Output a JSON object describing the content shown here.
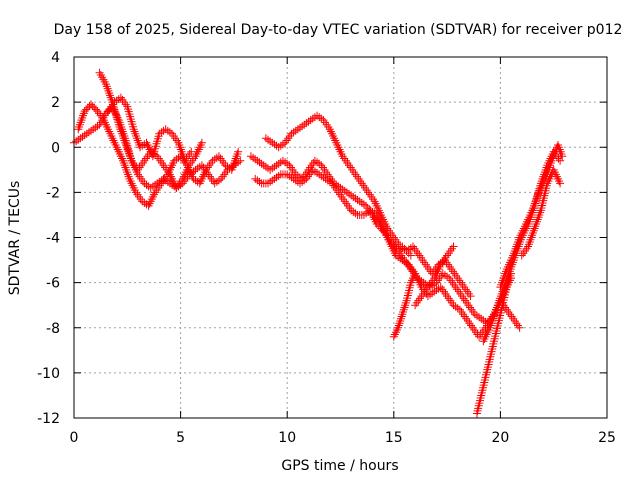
{
  "chart_data": {
    "type": "scatter",
    "title": "Day 158 of 2025, Sidereal Day-to-day VTEC variation (SDTVAR) for receiver p012",
    "xlabel": "GPS time / hours",
    "ylabel": "SDTVAR / TECUs",
    "xlim": [
      0,
      25
    ],
    "ylim": [
      -12,
      4
    ],
    "xticks": [
      0,
      5,
      10,
      15,
      20,
      25
    ],
    "yticks": [
      -12,
      -10,
      -8,
      -6,
      -4,
      -2,
      0,
      2,
      4
    ],
    "grid": true,
    "marker": "plus",
    "color": "#ff0000",
    "series": [
      {
        "x": [
          0.0,
          0.3,
          0.6,
          0.9,
          1.2,
          1.5,
          1.8,
          2.1,
          2.4,
          2.7,
          3.0,
          3.3,
          3.6,
          3.9,
          4.2,
          4.5,
          4.8,
          5.1,
          5.4,
          5.7,
          6.0,
          6.3,
          6.6,
          6.9,
          7.2,
          7.5,
          7.8
        ],
        "y": [
          0.2,
          0.4,
          0.6,
          0.8,
          1.0,
          1.5,
          1.8,
          1.2,
          0.4,
          -0.6,
          -1.2,
          -1.6,
          -1.8,
          -1.6,
          -1.4,
          -1.6,
          -1.8,
          -1.6,
          -1.2,
          -1.0,
          -0.8,
          -1.2,
          -1.6,
          -1.4,
          -1.0,
          -0.8,
          -0.6
        ]
      },
      {
        "x": [
          0.2,
          0.5,
          0.8,
          1.1,
          1.4,
          1.7,
          2.0,
          2.3,
          2.6,
          2.9,
          3.2,
          3.5,
          3.8,
          4.1,
          4.4,
          4.7,
          5.0,
          5.3,
          5.6,
          5.9,
          6.2,
          6.5,
          6.8,
          7.1,
          7.4,
          7.7
        ],
        "y": [
          0.8,
          1.6,
          1.9,
          1.6,
          1.2,
          0.6,
          0.0,
          -0.6,
          -1.4,
          -2.0,
          -2.4,
          -2.6,
          -2.0,
          -1.6,
          -1.2,
          -0.6,
          -0.4,
          -0.8,
          -1.4,
          -1.6,
          -1.0,
          -0.6,
          -0.4,
          -0.8,
          -1.0,
          -0.2
        ]
      },
      {
        "x": [
          1.2,
          1.5,
          1.8,
          2.1,
          2.4,
          2.7,
          3.0,
          3.3,
          3.6,
          3.9,
          4.2,
          4.5,
          4.8,
          5.1,
          5.4,
          5.7,
          6.0
        ],
        "y": [
          3.3,
          2.8,
          2.0,
          1.0,
          0.2,
          -0.6,
          -1.0,
          -0.6,
          -0.2,
          -0.4,
          -0.8,
          -1.2,
          -1.8,
          -1.4,
          -0.8,
          -0.4,
          0.2
        ]
      },
      {
        "x": [
          1.6,
          1.9,
          2.2,
          2.5,
          2.8,
          3.1,
          3.4,
          3.7,
          4.0,
          4.3,
          4.6,
          4.9,
          5.2,
          5.5
        ],
        "y": [
          1.6,
          2.0,
          2.2,
          1.8,
          0.8,
          0.0,
          0.2,
          -0.4,
          0.6,
          0.8,
          0.6,
          0.2,
          -0.6,
          -0.2
        ]
      },
      {
        "x": [
          8.3,
          8.6,
          8.9,
          9.2,
          9.5,
          9.8,
          10.1,
          10.4,
          10.7,
          11.0,
          11.3,
          11.6,
          11.9,
          12.2,
          12.5,
          12.8,
          13.1,
          13.4,
          13.7,
          14.0,
          14.3,
          14.6,
          14.9,
          15.2,
          15.5,
          15.8,
          16.1,
          16.4,
          16.7,
          17.0,
          17.3,
          17.6,
          17.9,
          18.2,
          18.5,
          18.8,
          19.1,
          19.4,
          19.7,
          20.0,
          20.3,
          20.6,
          20.9
        ],
        "y": [
          -0.4,
          -0.6,
          -0.8,
          -1.0,
          -0.8,
          -0.6,
          -0.8,
          -1.2,
          -1.4,
          -1.0,
          -0.6,
          -0.8,
          -1.2,
          -1.6,
          -1.8,
          -2.0,
          -2.2,
          -2.4,
          -2.6,
          -3.0,
          -3.4,
          -3.8,
          -4.2,
          -4.6,
          -5.0,
          -5.4,
          -5.8,
          -6.0,
          -6.2,
          -6.0,
          -5.6,
          -5.8,
          -6.2,
          -6.6,
          -7.0,
          -7.4,
          -7.6,
          -7.8,
          -7.4,
          -6.8,
          -7.2,
          -7.6,
          -8.0
        ]
      },
      {
        "x": [
          8.5,
          8.8,
          9.1,
          9.4,
          9.7,
          10.0,
          10.3,
          10.6,
          10.9,
          11.2,
          11.5,
          11.8,
          12.1,
          12.4,
          12.7,
          13.0,
          13.3,
          13.6,
          13.9,
          14.2,
          14.5,
          14.8,
          15.1,
          15.4,
          15.7,
          16.0,
          16.3,
          16.6,
          16.9,
          17.2,
          17.5,
          17.8,
          18.1,
          18.4,
          18.7,
          19.0,
          19.3,
          19.6,
          19.9,
          20.2,
          20.5
        ],
        "y": [
          -1.4,
          -1.6,
          -1.6,
          -1.4,
          -1.2,
          -1.2,
          -1.4,
          -1.6,
          -1.4,
          -1.0,
          -1.2,
          -1.4,
          -1.6,
          -2.0,
          -2.4,
          -2.8,
          -3.0,
          -3.0,
          -2.8,
          -3.0,
          -3.6,
          -4.2,
          -4.8,
          -5.0,
          -5.2,
          -5.6,
          -6.2,
          -6.6,
          -6.4,
          -6.2,
          -6.6,
          -7.0,
          -7.2,
          -7.6,
          -8.0,
          -8.4,
          -8.0,
          -7.6,
          -7.0,
          -6.4,
          -5.8
        ]
      },
      {
        "x": [
          9.0,
          9.3,
          9.6,
          9.9,
          10.2,
          10.5,
          10.8,
          11.1,
          11.4,
          11.7,
          12.0,
          12.3,
          12.6,
          12.9,
          13.2,
          13.5,
          13.8,
          14.1,
          14.4,
          14.7,
          15.0,
          15.3,
          15.6,
          15.9,
          16.2,
          16.5,
          16.8,
          17.1,
          17.4,
          17.7,
          18.0,
          18.3,
          18.6
        ],
        "y": [
          0.4,
          0.2,
          0.0,
          0.2,
          0.6,
          0.8,
          1.0,
          1.2,
          1.4,
          1.2,
          0.8,
          0.2,
          -0.4,
          -0.8,
          -1.2,
          -1.6,
          -2.0,
          -2.4,
          -3.0,
          -3.6,
          -4.0,
          -4.4,
          -4.6,
          -4.4,
          -4.8,
          -5.2,
          -5.6,
          -5.2,
          -5.0,
          -5.4,
          -5.8,
          -6.2,
          -6.6
        ]
      },
      {
        "x": [
          14.0,
          14.2,
          14.4,
          14.6,
          14.8,
          15.0,
          15.2,
          15.4,
          15.6,
          15.8
        ],
        "y": [
          -3.0,
          -3.4,
          -3.6,
          -3.8,
          -4.2,
          -4.4,
          -4.6,
          -4.4,
          -4.6,
          -4.8
        ]
      },
      {
        "x": [
          15.0,
          15.2,
          15.4,
          15.6,
          15.8,
          16.0
        ],
        "y": [
          -8.4,
          -8.0,
          -7.4,
          -6.8,
          -6.0,
          -5.6
        ]
      },
      {
        "x": [
          16.0,
          16.3,
          16.6,
          16.9,
          17.2,
          17.5,
          17.8
        ],
        "y": [
          -7.0,
          -6.6,
          -6.2,
          -5.8,
          -5.2,
          -4.8,
          -4.4
        ]
      },
      {
        "x": [
          18.9,
          19.1,
          19.3,
          19.5,
          19.7,
          19.9,
          20.1,
          20.3,
          20.5
        ],
        "y": [
          -11.8,
          -11.0,
          -10.2,
          -9.4,
          -8.6,
          -7.8,
          -7.0,
          -6.2,
          -5.6
        ]
      },
      {
        "x": [
          19.2,
          19.5,
          19.8,
          20.1,
          20.4,
          20.7,
          21.0,
          21.3,
          21.6,
          21.9,
          22.2,
          22.5,
          22.8
        ],
        "y": [
          -8.6,
          -8.0,
          -7.2,
          -6.4,
          -5.6,
          -4.8,
          -4.0,
          -3.4,
          -2.6,
          -1.6,
          -0.8,
          -0.2,
          -0.6
        ]
      },
      {
        "x": [
          20.0,
          20.3,
          20.6,
          20.9,
          21.2,
          21.5,
          21.8,
          22.1,
          22.4,
          22.7,
          22.9
        ],
        "y": [
          -6.2,
          -5.4,
          -4.8,
          -4.0,
          -3.4,
          -2.8,
          -2.0,
          -1.4,
          -0.6,
          0.1,
          -0.4
        ]
      },
      {
        "x": [
          21.0,
          21.3,
          21.6,
          21.9,
          22.2,
          22.5,
          22.8
        ],
        "y": [
          -4.8,
          -4.4,
          -3.6,
          -2.8,
          -1.6,
          -1.0,
          -1.6
        ]
      }
    ]
  }
}
